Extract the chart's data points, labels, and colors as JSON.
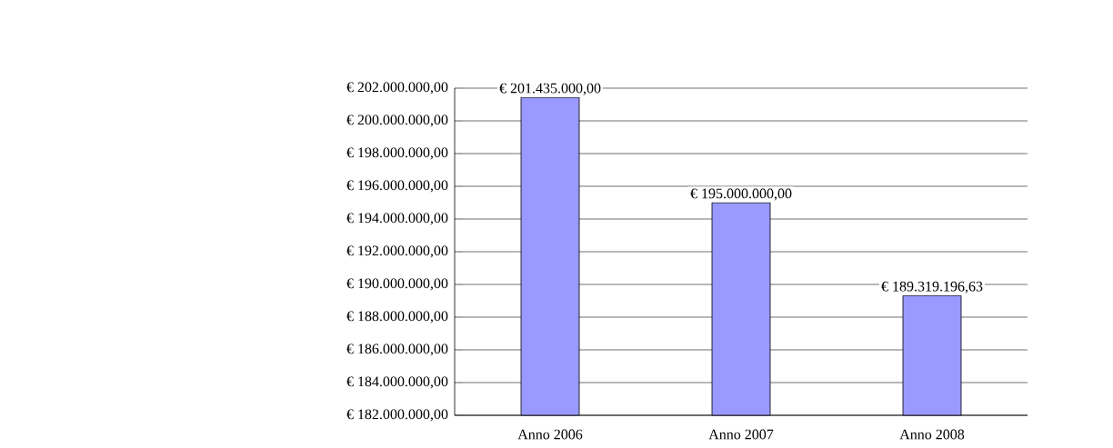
{
  "chart_data": {
    "type": "bar",
    "categories": [
      "Anno 2006",
      "Anno 2007",
      "Anno 2008"
    ],
    "values": [
      201435000,
      195000000,
      189319196.63
    ],
    "value_labels": [
      "€ 201.435.000,00",
      "€ 195.000.000,00",
      "€ 189.319.196,63"
    ],
    "color": "#9999ff",
    "ylim": [
      182000000,
      202000000
    ],
    "yticks": [
      {
        "value": 182000000,
        "label": "€ 182.000.000,00"
      },
      {
        "value": 184000000,
        "label": "€ 184.000.000,00"
      },
      {
        "value": 186000000,
        "label": "€ 186.000.000,00"
      },
      {
        "value": 188000000,
        "label": "€ 188.000.000,00"
      },
      {
        "value": 190000000,
        "label": "€ 190.000.000,00"
      },
      {
        "value": 192000000,
        "label": "€ 192.000.000,00"
      },
      {
        "value": 194000000,
        "label": "€ 194.000.000,00"
      },
      {
        "value": 196000000,
        "label": "€ 196.000.000,00"
      },
      {
        "value": 198000000,
        "label": "€ 198.000.000,00"
      },
      {
        "value": 200000000,
        "label": "€ 200.000.000,00"
      },
      {
        "value": 202000000,
        "label": "€ 202.000.000,00"
      }
    ],
    "grid": "y"
  }
}
